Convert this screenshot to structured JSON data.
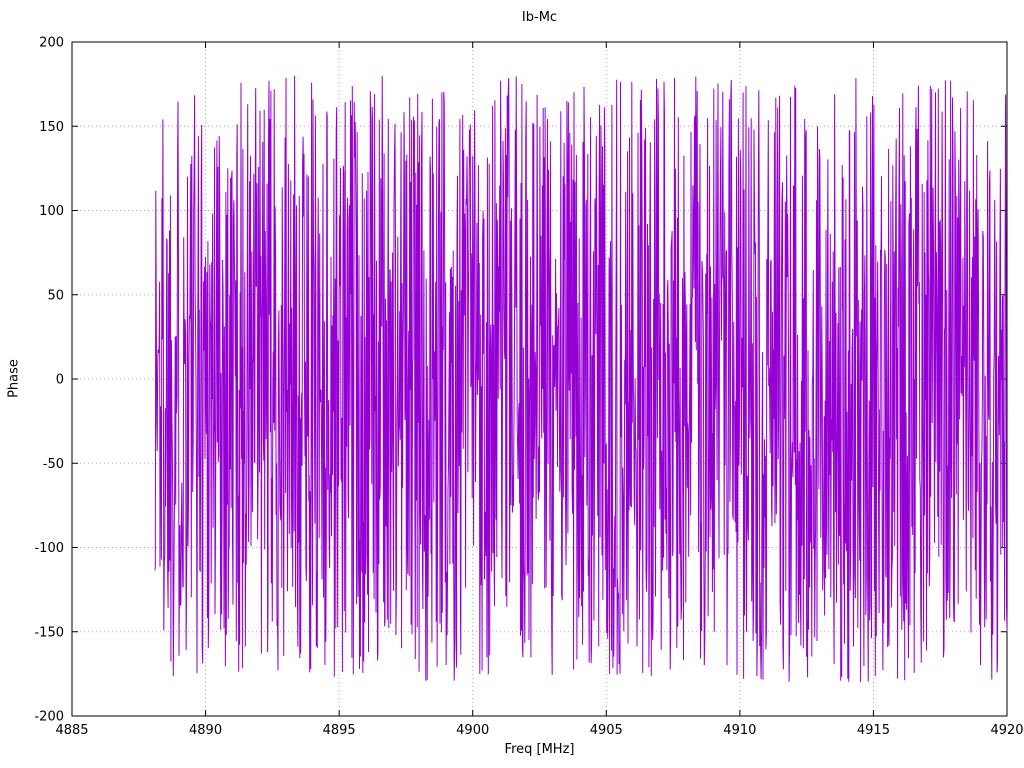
{
  "chart_data": {
    "type": "line",
    "title": "Ib-Mc",
    "xlabel": "Freq [MHz]",
    "ylabel": "Phase",
    "xlim": [
      4885,
      4920
    ],
    "ylim": [
      -200,
      200
    ],
    "x_ticks": [
      4885,
      4890,
      4895,
      4900,
      4905,
      4910,
      4915,
      4920
    ],
    "y_ticks": [
      -200,
      -150,
      -100,
      -50,
      0,
      50,
      100,
      150,
      200
    ],
    "grid": true,
    "grid_style": "dotted",
    "grid_color": "#b0b0b0",
    "border_color": "#000000",
    "legend_position": "none",
    "series": [
      {
        "name": "phase",
        "color": "#9400d3",
        "style": "lines",
        "x_start": 4888.1,
        "x_end": 4920.0,
        "n_points": 1800,
        "y_min": -180,
        "y_max": 180,
        "distribution": "uniform random wrapped phase noise between -180 and 180 degrees",
        "prng_seed": 1337
      }
    ]
  }
}
